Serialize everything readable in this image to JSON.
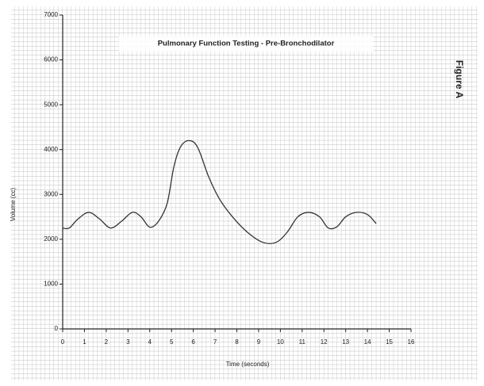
{
  "chart_data": {
    "type": "line",
    "title": "Pulmonary Function Testing - Pre-Bronchodilator",
    "annotation": "Figure A",
    "x_label": "Time (seconds)",
    "y_label": "Volume (cc)",
    "x": [
      0,
      0.3,
      0.7,
      1.2,
      1.7,
      2.2,
      2.7,
      3.2,
      3.6,
      4.0,
      4.4,
      4.8,
      5.1,
      5.4,
      5.8,
      6.2,
      6.7,
      7.2,
      7.8,
      8.5,
      9.2,
      9.8,
      10.3,
      10.8,
      11.3,
      11.8,
      12.2,
      12.6,
      13.0,
      13.5,
      14.0,
      14.4
    ],
    "series": [
      {
        "name": "Volume",
        "color": "#333333",
        "values": [
          2250,
          2250,
          2450,
          2600,
          2450,
          2250,
          2400,
          2600,
          2500,
          2270,
          2400,
          2800,
          3600,
          4050,
          4200,
          4050,
          3400,
          2900,
          2500,
          2150,
          1930,
          1930,
          2150,
          2500,
          2600,
          2500,
          2250,
          2280,
          2500,
          2600,
          2550,
          2350
        ]
      }
    ],
    "xlim": [
      0,
      16
    ],
    "xticks": [
      0,
      1,
      2,
      3,
      4,
      5,
      6,
      7,
      8,
      9,
      10,
      11,
      12,
      13,
      14,
      15,
      16
    ],
    "ylim": [
      0,
      7000
    ],
    "yticks": [
      0,
      1000,
      2000,
      3000,
      4000,
      5000,
      6000,
      7000
    ],
    "grid": true
  }
}
